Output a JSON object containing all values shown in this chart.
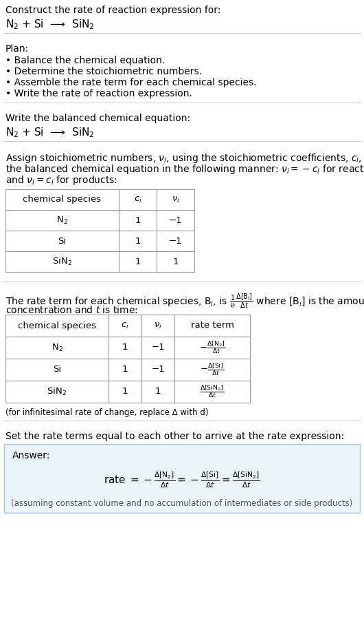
{
  "title_line1": "Construct the rate of reaction expression for:",
  "title_line2": "N$_2$ + Si  ⟶  SiN$_2$",
  "plan_header": "Plan:",
  "plan_items": [
    "• Balance the chemical equation.",
    "• Determine the stoichiometric numbers.",
    "• Assemble the rate term for each chemical species.",
    "• Write the rate of reaction expression."
  ],
  "balanced_header": "Write the balanced chemical equation:",
  "balanced_eq": "N$_2$ + Si  ⟶  SiN$_2$",
  "stoich_intro_lines": [
    "Assign stoichiometric numbers, $\\nu_i$, using the stoichiometric coefficients, $c_i$, from",
    "the balanced chemical equation in the following manner: $\\nu_i = -c_i$ for reactants",
    "and $\\nu_i = c_i$ for products:"
  ],
  "table1_headers": [
    "chemical species",
    "$c_i$",
    "$\\nu_i$"
  ],
  "table1_rows": [
    [
      "N$_2$",
      "1",
      "−1"
    ],
    [
      "Si",
      "1",
      "−1"
    ],
    [
      "SiN$_2$",
      "1",
      "1"
    ]
  ],
  "rate_intro_line1": "The rate term for each chemical species, B$_i$, is $\\frac{1}{\\nu_i}\\frac{\\Delta[\\mathrm{B}_i]}{\\Delta t}$ where [B$_i$] is the amount",
  "rate_intro_line2": "concentration and $t$ is time:",
  "table2_headers": [
    "chemical species",
    "$c_i$",
    "$\\nu_i$",
    "rate term"
  ],
  "table2_rows": [
    [
      "N$_2$",
      "1",
      "−1",
      "$-\\frac{\\Delta[\\mathrm{N_2}]}{\\Delta t}$"
    ],
    [
      "Si",
      "1",
      "−1",
      "$-\\frac{\\Delta[\\mathrm{Si}]}{\\Delta t}$"
    ],
    [
      "SiN$_2$",
      "1",
      "1",
      "$\\frac{\\Delta[\\mathrm{SiN_2}]}{\\Delta t}$"
    ]
  ],
  "infinitesimal_note": "(for infinitesimal rate of change, replace Δ with d)",
  "set_equal_text": "Set the rate terms equal to each other to arrive at the rate expression:",
  "answer_label": "Answer:",
  "answer_eq": "rate $= -\\frac{\\Delta[\\mathrm{N_2}]}{\\Delta t} = -\\frac{\\Delta[\\mathrm{Si}]}{\\Delta t} = \\frac{\\Delta[\\mathrm{SiN_2}]}{\\Delta t}$",
  "answer_note": "(assuming constant volume and no accumulation of intermediates or side products)",
  "bg_color": "#ffffff",
  "answer_bg_color": "#e8f4f8",
  "answer_border_color": "#a8c8d8",
  "separator_color": "#cccccc",
  "table_border_color": "#999999",
  "text_color": "#000000",
  "note_color": "#555555",
  "font_size": 10,
  "eq_font_size": 11,
  "small_font_size": 8.5,
  "fig_width": 5.3,
  "fig_height": 9.08,
  "dpi": 100
}
